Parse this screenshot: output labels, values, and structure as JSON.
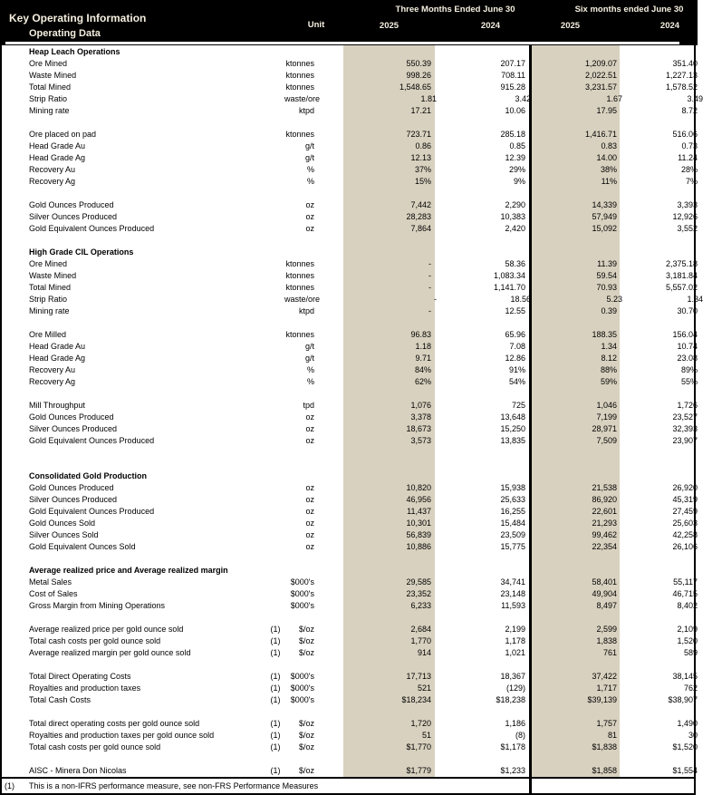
{
  "header": {
    "title": "Key Operating Information",
    "subtitle": "Operating Data",
    "unit_label": "Unit",
    "groups": [
      {
        "label": "Three Months Ended June 30",
        "years": [
          "2025",
          "2024"
        ]
      },
      {
        "label": "Six months ended June 30",
        "years": [
          "2025",
          "2024"
        ]
      }
    ]
  },
  "colors": {
    "header_bg": "#000000",
    "header_text": "#f5efe0",
    "highlight_band": "#d8d1bf",
    "body_text": "#000000"
  },
  "rows": [
    {
      "type": "section",
      "label": "Heap Leach Operations"
    },
    {
      "type": "data",
      "label": "Ore Mined",
      "unit": "ktonnes",
      "v": [
        "550.39",
        "207.17",
        "1,209.07",
        "351.40"
      ]
    },
    {
      "type": "data",
      "label": "Waste Mined",
      "unit": "ktonnes",
      "v": [
        "998.26",
        "708.11",
        "2,022.51",
        "1,227.13"
      ]
    },
    {
      "type": "data",
      "label": "Total Mined",
      "unit": "ktonnes",
      "v": [
        "1,548.65",
        "915.28",
        "3,231.57",
        "1,578.52"
      ]
    },
    {
      "type": "data",
      "label": "Strip Ratio",
      "unit": "waste/ore",
      "v": [
        "1.81",
        "3.42",
        "1.67",
        "3.49"
      ]
    },
    {
      "type": "data",
      "label": "Mining rate",
      "unit": "ktpd",
      "v": [
        "17.21",
        "10.06",
        "17.95",
        "8.72"
      ]
    },
    {
      "type": "blank"
    },
    {
      "type": "data",
      "label": "Ore placed on pad",
      "unit": "ktonnes",
      "v": [
        "723.71",
        "285.18",
        "1,416.71",
        "516.06"
      ]
    },
    {
      "type": "data",
      "label": "Head Grade Au",
      "unit": "g/t",
      "v": [
        "0.86",
        "0.85",
        "0.83",
        "0.73"
      ]
    },
    {
      "type": "data",
      "label": "Head Grade Ag",
      "unit": "g/t",
      "v": [
        "12.13",
        "12.39",
        "14.00",
        "11.24"
      ]
    },
    {
      "type": "data",
      "label": "Recovery Au",
      "unit": "%",
      "v": [
        "37%",
        "29%",
        "38%",
        "28%"
      ]
    },
    {
      "type": "data",
      "label": "Recovery Ag",
      "unit": "%",
      "v": [
        "15%",
        "9%",
        "11%",
        "7%"
      ]
    },
    {
      "type": "blank"
    },
    {
      "type": "data",
      "label": "Gold Ounces Produced",
      "unit": "oz",
      "v": [
        "7,442",
        "2,290",
        "14,339",
        "3,393"
      ]
    },
    {
      "type": "data",
      "label": "Silver Ounces Produced",
      "unit": "oz",
      "v": [
        "28,283",
        "10,383",
        "57,949",
        "12,926"
      ]
    },
    {
      "type": "data",
      "label": "Gold Equivalent Ounces Produced",
      "unit": "oz",
      "v": [
        "7,864",
        "2,420",
        "15,092",
        "3,552"
      ]
    },
    {
      "type": "blank"
    },
    {
      "type": "section",
      "label": "High Grade CIL Operations"
    },
    {
      "type": "data",
      "label": "Ore Mined",
      "unit": "ktonnes",
      "v": [
        "-",
        "58.36",
        "11.39",
        "2,375.18"
      ]
    },
    {
      "type": "data",
      "label": "Waste Mined",
      "unit": "ktonnes",
      "v": [
        "-",
        "1,083.34",
        "59.54",
        "3,181.84"
      ]
    },
    {
      "type": "data",
      "label": "Total Mined",
      "unit": "ktonnes",
      "v": [
        "-",
        "1,141.70",
        "70.93",
        "5,557.02"
      ]
    },
    {
      "type": "data",
      "label": "Strip Ratio",
      "unit": "waste/ore",
      "v": [
        "-",
        "18.56",
        "5.23",
        "1.34"
      ]
    },
    {
      "type": "data",
      "label": "Mining rate",
      "unit": "ktpd",
      "v": [
        "-",
        "12.55",
        "0.39",
        "30.70"
      ]
    },
    {
      "type": "blank"
    },
    {
      "type": "data",
      "label": "Ore Milled",
      "unit": "ktonnes",
      "v": [
        "96.83",
        "65.96",
        "188.35",
        "156.04"
      ]
    },
    {
      "type": "data",
      "label": "Head Grade Au",
      "unit": "g/t",
      "v": [
        "1.18",
        "7.08",
        "1.34",
        "10.74"
      ]
    },
    {
      "type": "data",
      "label": "Head Grade Ag",
      "unit": "g/t",
      "v": [
        "9.71",
        "12.86",
        "8.12",
        "23.08"
      ]
    },
    {
      "type": "data",
      "label": "Recovery Au",
      "unit": "%",
      "v": [
        "84%",
        "91%",
        "88%",
        "89%"
      ]
    },
    {
      "type": "data",
      "label": "Recovery Ag",
      "unit": "%",
      "v": [
        "62%",
        "54%",
        "59%",
        "55%"
      ]
    },
    {
      "type": "blank"
    },
    {
      "type": "data",
      "label": "Mill Throughput",
      "unit": "tpd",
      "v": [
        "1,076",
        "725",
        "1,046",
        "1,726"
      ]
    },
    {
      "type": "data",
      "label": "Gold Ounces Produced",
      "unit": "oz",
      "v": [
        "3,378",
        "13,648",
        "7,199",
        "23,527"
      ]
    },
    {
      "type": "data",
      "label": "Silver Ounces Produced",
      "unit": "oz",
      "v": [
        "18,673",
        "15,250",
        "28,971",
        "32,393"
      ]
    },
    {
      "type": "data",
      "label": "Gold Equivalent Ounces Produced",
      "unit": "oz",
      "v": [
        "3,573",
        "13,835",
        "7,509",
        "23,907"
      ]
    },
    {
      "type": "blank"
    },
    {
      "type": "blank"
    },
    {
      "type": "section",
      "label": "Consolidated Gold Production"
    },
    {
      "type": "data",
      "label": "Gold Ounces Produced",
      "unit": "oz",
      "v": [
        "10,820",
        "15,938",
        "21,538",
        "26,920"
      ]
    },
    {
      "type": "data",
      "label": "Silver Ounces Produced",
      "unit": "oz",
      "v": [
        "46,956",
        "25,633",
        "86,920",
        "45,319"
      ]
    },
    {
      "type": "data",
      "label": "Gold Equivalent Ounces Produced",
      "unit": "oz",
      "v": [
        "11,437",
        "16,255",
        "22,601",
        "27,459"
      ]
    },
    {
      "type": "data",
      "label": "Gold Ounces Sold",
      "unit": "oz",
      "v": [
        "10,301",
        "15,484",
        "21,293",
        "25,603"
      ]
    },
    {
      "type": "data",
      "label": "Silver Ounces Sold",
      "unit": "oz",
      "v": [
        "56,839",
        "23,509",
        "99,462",
        "42,258"
      ]
    },
    {
      "type": "data",
      "label": "Gold Equivalent Ounces Sold",
      "unit": "oz",
      "v": [
        "10,886",
        "15,775",
        "22,354",
        "26,106"
      ]
    },
    {
      "type": "blank"
    },
    {
      "type": "section",
      "label": "Average realized price and Average realized margin"
    },
    {
      "type": "data",
      "label": "Metal Sales",
      "unit": "$000's",
      "v": [
        "29,585",
        "34,741",
        "58,401",
        "55,117"
      ]
    },
    {
      "type": "data",
      "label": "Cost of Sales",
      "unit": "$000's",
      "v": [
        "23,352",
        "23,148",
        "49,904",
        "46,715"
      ]
    },
    {
      "type": "data",
      "label": "Gross Margin from Mining Operations",
      "unit": "$000's",
      "v": [
        "6,233",
        "11,593",
        "8,497",
        "8,402"
      ]
    },
    {
      "type": "blank"
    },
    {
      "type": "data",
      "label": "Average realized price per gold ounce sold",
      "note": "(1)",
      "unit": "$/oz",
      "v": [
        "2,684",
        "2,199",
        "2,599",
        "2,109"
      ]
    },
    {
      "type": "data",
      "label": "Total cash costs per gold ounce sold",
      "note": "(1)",
      "unit": "$/oz",
      "v": [
        "1,770",
        "1,178",
        "1,838",
        "1,520"
      ]
    },
    {
      "type": "data",
      "label": "Average realized margin per gold ounce sold",
      "note": "(1)",
      "unit": "$/oz",
      "v": [
        "914",
        "1,021",
        "761",
        "589"
      ]
    },
    {
      "type": "blank"
    },
    {
      "type": "data",
      "label": "Total Direct Operating Costs",
      "note": "(1)",
      "unit": "$000's",
      "v": [
        "17,713",
        "18,367",
        "37,422",
        "38,145"
      ]
    },
    {
      "type": "data",
      "label": "Royalties and production taxes",
      "note": "(1)",
      "unit": "$000's",
      "v": [
        "521",
        "(129)",
        "1,717",
        "762"
      ]
    },
    {
      "type": "data",
      "label": "Total Cash Costs",
      "note": "(1)",
      "unit": "$000's",
      "v": [
        "$18,234",
        "$18,238",
        "$39,139",
        "$38,907"
      ]
    },
    {
      "type": "blank"
    },
    {
      "type": "data",
      "label": "Total direct operating costs per gold ounce sold",
      "note": "(1)",
      "unit": "$/oz",
      "v": [
        "1,720",
        "1,186",
        "1,757",
        "1,490"
      ]
    },
    {
      "type": "data",
      "label": "Royalties and production taxes per gold ounce sold",
      "note": "(1)",
      "unit": "$/oz",
      "v": [
        "51",
        "(8)",
        "81",
        "30"
      ]
    },
    {
      "type": "data",
      "label": "Total cash costs per gold ounce sold",
      "note": "(1)",
      "unit": "$/oz",
      "v": [
        "$1,770",
        "$1,178",
        "$1,838",
        "$1,520"
      ]
    },
    {
      "type": "blank"
    },
    {
      "type": "data",
      "label": "AISC - Minera Don Nicolas",
      "note": "(1)",
      "unit": "$/oz",
      "v": [
        "$1,779",
        "$1,233",
        "$1,858",
        "$1,554"
      ]
    }
  ],
  "footnote": {
    "marker": "(1)",
    "text": "This is a non-IFRS performance measure, see non-FRS Performance Measures"
  }
}
